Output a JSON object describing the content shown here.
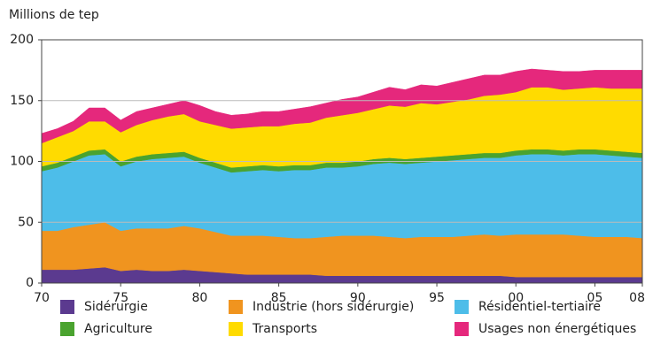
{
  "chart_data": {
    "type": "stacked_area",
    "ylabel": "Millions de tep",
    "x": [
      1970,
      1971,
      1972,
      1973,
      1974,
      1975,
      1976,
      1977,
      1978,
      1979,
      1980,
      1981,
      1982,
      1983,
      1984,
      1985,
      1986,
      1987,
      1988,
      1989,
      1990,
      1991,
      1992,
      1993,
      1994,
      1995,
      1996,
      1997,
      1998,
      1999,
      2000,
      2001,
      2002,
      2003,
      2004,
      2005,
      2006,
      2007,
      2008
    ],
    "xlim": [
      1970,
      2008
    ],
    "xticks": [
      {
        "value": 1970,
        "label": "70"
      },
      {
        "value": 1975,
        "label": "75"
      },
      {
        "value": 1980,
        "label": "80"
      },
      {
        "value": 1985,
        "label": "85"
      },
      {
        "value": 1990,
        "label": "90"
      },
      {
        "value": 1995,
        "label": "95"
      },
      {
        "value": 2000,
        "label": "00"
      },
      {
        "value": 2005,
        "label": "05"
      },
      {
        "value": 2008,
        "label": "08"
      }
    ],
    "ylim": [
      0,
      200
    ],
    "yticks": [
      0,
      50,
      100,
      150,
      200
    ],
    "grid": true,
    "series": [
      {
        "name": "Sidérurgie",
        "color": "#5b3a8f",
        "values": [
          11,
          11,
          11,
          12,
          13,
          10,
          11,
          10,
          10,
          11,
          10,
          9,
          8,
          7,
          7,
          7,
          7,
          7,
          6,
          6,
          6,
          6,
          6,
          6,
          6,
          6,
          6,
          6,
          6,
          6,
          5,
          5,
          5,
          5,
          5,
          5,
          5,
          5,
          5
        ]
      },
      {
        "name": "Industrie (hors sidérurgie)",
        "color": "#f0941f",
        "values": [
          32,
          32,
          35,
          36,
          37,
          33,
          34,
          35,
          35,
          36,
          35,
          33,
          31,
          32,
          32,
          31,
          30,
          30,
          32,
          33,
          33,
          33,
          32,
          31,
          32,
          32,
          32,
          33,
          34,
          33,
          35,
          35,
          35,
          35,
          34,
          33,
          33,
          33,
          32
        ]
      },
      {
        "name": "Résidentiel-tertiaire",
        "color": "#4dbde9",
        "values": [
          49,
          52,
          54,
          57,
          56,
          53,
          55,
          57,
          58,
          57,
          54,
          53,
          52,
          53,
          54,
          54,
          56,
          56,
          57,
          56,
          57,
          59,
          61,
          61,
          61,
          62,
          63,
          63,
          63,
          64,
          65,
          66,
          66,
          65,
          67,
          68,
          67,
          66,
          66
        ]
      },
      {
        "name": "Agriculture",
        "color": "#4aa32f",
        "values": [
          4,
          4,
          4,
          4,
          4,
          4,
          4,
          4,
          4,
          4,
          4,
          4,
          4,
          4,
          4,
          4,
          4,
          4,
          4,
          4,
          4,
          4,
          4,
          4,
          4,
          4,
          4,
          4,
          4,
          4,
          4,
          4,
          4,
          4,
          4,
          4,
          4,
          4,
          4
        ]
      },
      {
        "name": "Transports",
        "color": "#ffdb00",
        "values": [
          19,
          21,
          21,
          24,
          23,
          24,
          26,
          28,
          30,
          31,
          30,
          31,
          32,
          32,
          32,
          33,
          34,
          35,
          37,
          39,
          40,
          41,
          43,
          43,
          45,
          43,
          44,
          45,
          47,
          48,
          48,
          51,
          51,
          50,
          50,
          51,
          51,
          52,
          53
        ]
      },
      {
        "name": "Usages non énergétiques",
        "color": "#e5287c",
        "values": [
          8,
          7,
          8,
          11,
          11,
          10,
          11,
          10,
          10,
          11,
          13,
          11,
          11,
          11,
          12,
          12,
          12,
          13,
          12,
          13,
          13,
          14,
          15,
          14,
          15,
          15,
          16,
          17,
          17,
          16,
          17,
          15,
          14,
          15,
          14,
          14,
          15,
          15,
          15
        ]
      }
    ]
  }
}
